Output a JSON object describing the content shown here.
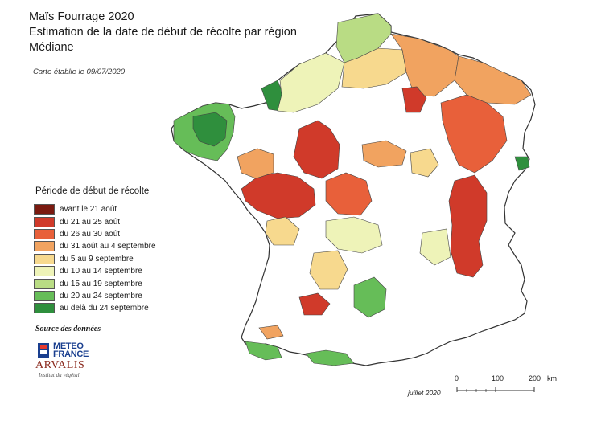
{
  "title": {
    "line1": "Maïs Fourrage 2020",
    "line2": "Estimation de la date de début de récolte par région",
    "line3": "Médiane"
  },
  "subtitle": "Carte établie le 09/07/2020",
  "legend": {
    "title": "Période de début de récolte",
    "items": [
      {
        "label": "avant le 21 août",
        "color": "#7a1a10"
      },
      {
        "label": "du 21 au 25 août",
        "color": "#d03a2a"
      },
      {
        "label": "du 26 au 30 août",
        "color": "#e8603a"
      },
      {
        "label": "du 31 août au 4 septembre",
        "color": "#f1a360"
      },
      {
        "label": "du 5 au 9 septembre",
        "color": "#f7d98e"
      },
      {
        "label": "du 10 au 14 septembre",
        "color": "#eef3b8"
      },
      {
        "label": "du 15 au 19 septembre",
        "color": "#b9dc84"
      },
      {
        "label": "du 20 au 24 septembre",
        "color": "#66bd58"
      },
      {
        "label": "au delà du 24 septembre",
        "color": "#2f8f3d"
      }
    ]
  },
  "source": {
    "title": "Source des données",
    "meteo_line1": "METEO",
    "meteo_line2": "FRANCE",
    "arvalis_name": "ARVALIS",
    "arvalis_sub": "Institut du végétal"
  },
  "date_note": "juillet 2020",
  "scale": {
    "labels": [
      "0",
      "100",
      "200"
    ],
    "unit": "km"
  }
}
